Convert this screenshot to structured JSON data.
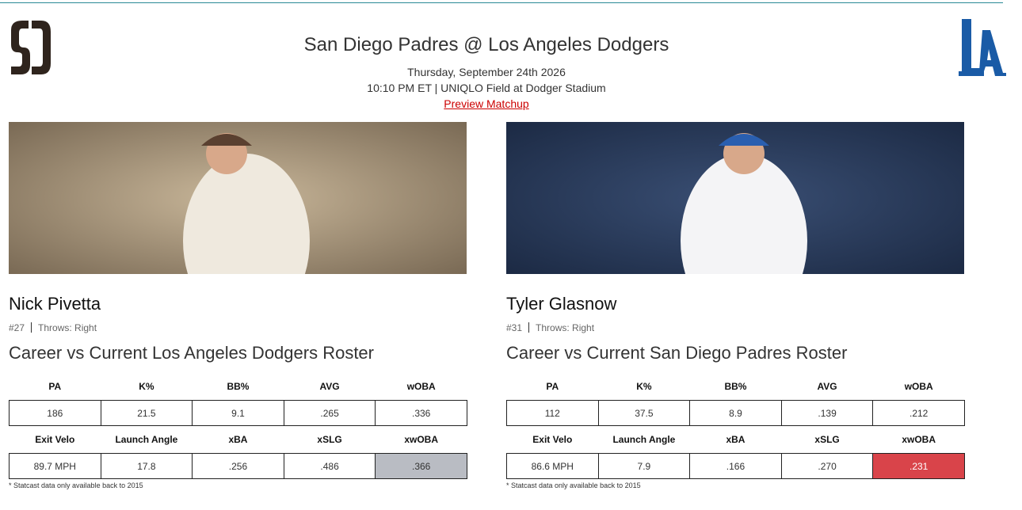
{
  "header": {
    "title": "San Diego Padres @ Los Angeles Dodgers",
    "date": "Thursday, September 24th 2026",
    "time_venue": "10:10 PM ET | UNIQLO Field at Dodger Stadium",
    "link": "Preview Matchup"
  },
  "pitchers": [
    {
      "name": "Nick Pivetta",
      "number": "#27",
      "throws": "Throws: Right",
      "heading": "Career vs Current Los Angeles Dodgers Roster",
      "stats_headers": [
        "PA",
        "K%",
        "BB%",
        "AVG",
        "wOBA"
      ],
      "stats": [
        "186",
        "21.5",
        "9.1",
        ".265",
        ".336"
      ],
      "statcast_headers": [
        "Exit Velo",
        "Launch Angle",
        "xBA",
        "xSLG",
        "xwOBA"
      ],
      "statcast": [
        "89.7 MPH",
        "17.8",
        ".256",
        ".486",
        ".366"
      ],
      "note": "* Statcast data only available back to 2015"
    },
    {
      "name": "Tyler Glasnow",
      "number": "#31",
      "throws": "Throws: Right",
      "heading": "Career vs Current San Diego Padres Roster",
      "stats_headers": [
        "PA",
        "K%",
        "BB%",
        "AVG",
        "wOBA"
      ],
      "stats": [
        "112",
        "37.5",
        "8.9",
        ".139",
        ".212"
      ],
      "statcast_headers": [
        "Exit Velo",
        "Launch Angle",
        "xBA",
        "xSLG",
        "xwOBA"
      ],
      "statcast": [
        "86.6 MPH",
        "7.9",
        ".166",
        ".270",
        ".231"
      ],
      "note": "* Statcast data only available back to 2015"
    }
  ]
}
